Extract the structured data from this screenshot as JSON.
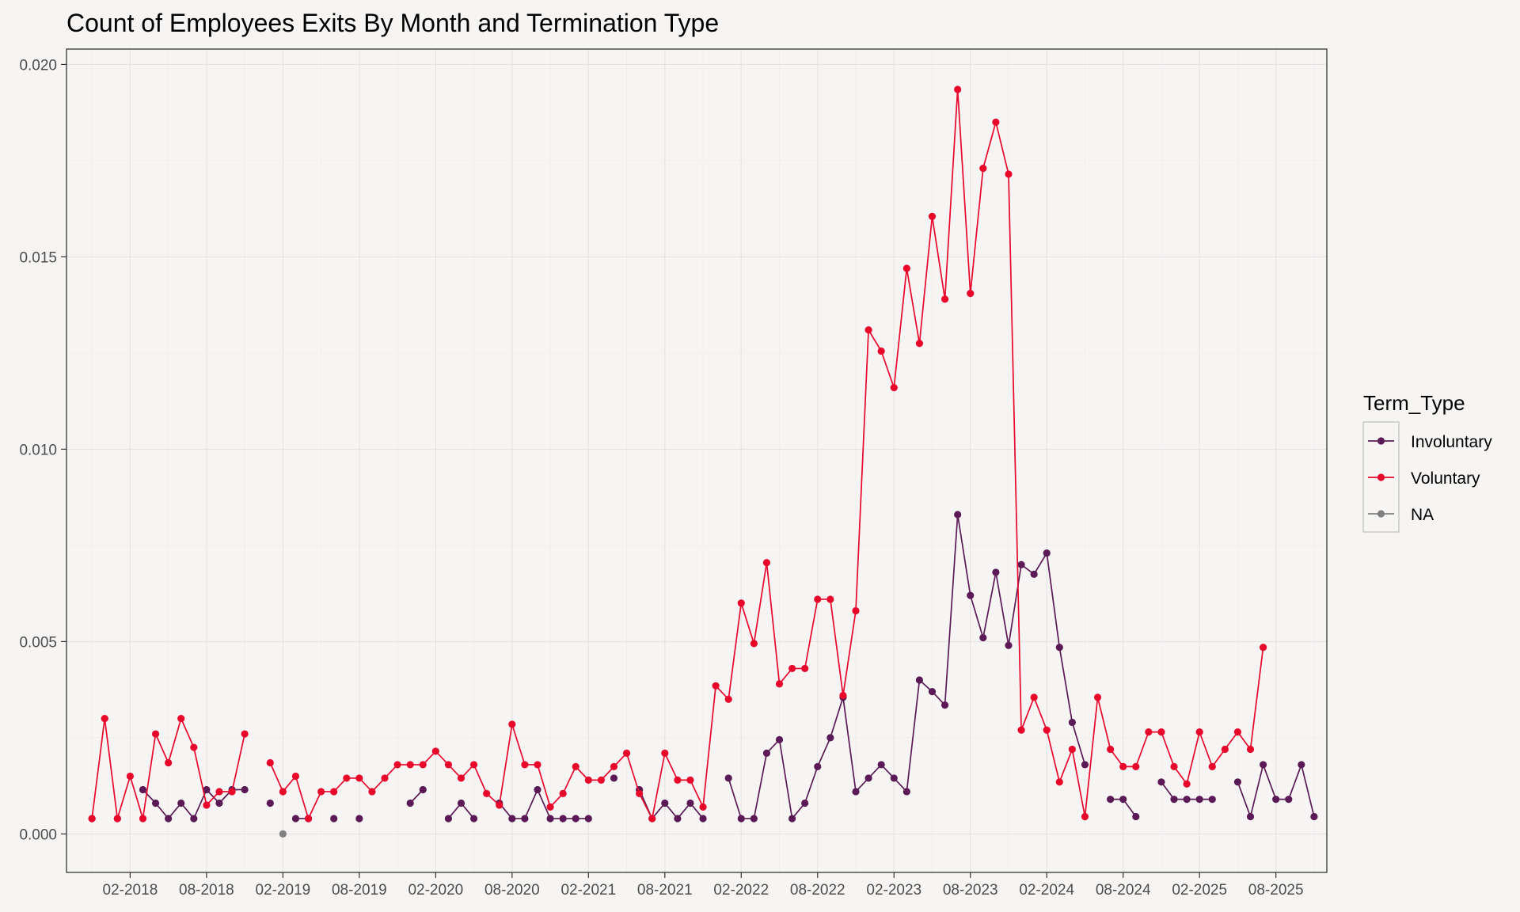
{
  "chart_data": {
    "type": "line",
    "title": "Count of Employees Exits By Month and Termination Type",
    "xlabel": "",
    "ylabel": "",
    "ylim": [
      -0.001,
      0.0204
    ],
    "xlim": [
      "2017-09",
      "2025-12"
    ],
    "yticks": [
      0.0,
      0.005,
      0.01,
      0.015,
      0.02
    ],
    "ytick_labels": [
      "0.000",
      "0.005",
      "0.010",
      "0.015",
      "0.020"
    ],
    "xticks": [
      "2018-02",
      "2018-08",
      "2019-02",
      "2019-08",
      "2020-02",
      "2020-08",
      "2021-02",
      "2021-08",
      "2022-02",
      "2022-08",
      "2023-02",
      "2023-08",
      "2024-02",
      "2024-08",
      "2025-02",
      "2025-08"
    ],
    "xtick_labels": [
      "02-2018",
      "08-2018",
      "02-2019",
      "08-2019",
      "02-2020",
      "08-2020",
      "02-2021",
      "08-2021",
      "02-2022",
      "08-2022",
      "02-2023",
      "08-2023",
      "02-2024",
      "08-2024",
      "02-2025",
      "08-2025"
    ],
    "grid": true,
    "legend": {
      "title": "Term_Type",
      "position": "right"
    },
    "series": [
      {
        "name": "Involuntary",
        "color": "#5b1a55",
        "points": [
          [
            "2017-11",
            0.0004
          ],
          [
            "2018-01",
            0.0004
          ],
          [
            "2018-03",
            0.00115
          ],
          [
            "2018-04",
            0.0008
          ],
          [
            "2018-05",
            0.0004
          ],
          [
            "2018-06",
            0.0008
          ],
          [
            "2018-07",
            0.0004
          ],
          [
            "2018-08",
            0.00115
          ],
          [
            "2018-09",
            0.0008
          ],
          [
            "2018-10",
            0.00115
          ],
          [
            "2018-11",
            0.00115
          ],
          [
            "2019-01",
            0.0008
          ],
          [
            "2019-03",
            0.0004
          ],
          [
            "2019-04",
            0.0004
          ],
          [
            "2019-06",
            0.0004
          ],
          [
            "2019-08",
            0.0004
          ],
          [
            "2019-12",
            0.0008
          ],
          [
            "2020-01",
            0.00115
          ],
          [
            "2020-03",
            0.0004
          ],
          [
            "2020-04",
            0.0008
          ],
          [
            "2020-05",
            0.0004
          ],
          [
            "2020-07",
            0.0008
          ],
          [
            "2020-08",
            0.0004
          ],
          [
            "2020-09",
            0.0004
          ],
          [
            "2020-10",
            0.00115
          ],
          [
            "2020-11",
            0.0004
          ],
          [
            "2020-12",
            0.0004
          ],
          [
            "2021-01",
            0.0004
          ],
          [
            "2021-02",
            0.0004
          ],
          [
            "2021-04",
            0.00145
          ],
          [
            "2021-06",
            0.00115
          ],
          [
            "2021-07",
            0.0004
          ],
          [
            "2021-08",
            0.0008
          ],
          [
            "2021-09",
            0.0004
          ],
          [
            "2021-10",
            0.0008
          ],
          [
            "2021-11",
            0.0004
          ],
          [
            "2022-01",
            0.00145
          ],
          [
            "2022-02",
            0.0004
          ],
          [
            "2022-03",
            0.0004
          ],
          [
            "2022-04",
            0.0021
          ],
          [
            "2022-05",
            0.00245
          ],
          [
            "2022-06",
            0.0004
          ],
          [
            "2022-07",
            0.0008
          ],
          [
            "2022-08",
            0.00175
          ],
          [
            "2022-09",
            0.0025
          ],
          [
            "2022-10",
            0.00355
          ],
          [
            "2022-11",
            0.0011
          ],
          [
            "2022-12",
            0.00145
          ],
          [
            "2023-01",
            0.0018
          ],
          [
            "2023-02",
            0.00145
          ],
          [
            "2023-03",
            0.0011
          ],
          [
            "2023-04",
            0.004
          ],
          [
            "2023-05",
            0.0037
          ],
          [
            "2023-06",
            0.00335
          ],
          [
            "2023-07",
            0.0083
          ],
          [
            "2023-08",
            0.0062
          ],
          [
            "2023-09",
            0.0051
          ],
          [
            "2023-10",
            0.0068
          ],
          [
            "2023-11",
            0.0049
          ],
          [
            "2023-12",
            0.007
          ],
          [
            "2024-01",
            0.00675
          ],
          [
            "2024-02",
            0.0073
          ],
          [
            "2024-03",
            0.00485
          ],
          [
            "2024-04",
            0.0029
          ],
          [
            "2024-05",
            0.0018
          ],
          [
            "2024-07",
            0.0009
          ],
          [
            "2024-08",
            0.0009
          ],
          [
            "2024-09",
            0.00045
          ],
          [
            "2024-11",
            0.00135
          ],
          [
            "2024-12",
            0.0009
          ],
          [
            "2025-01",
            0.0009
          ],
          [
            "2025-02",
            0.0009
          ],
          [
            "2025-03",
            0.0009
          ],
          [
            "2025-05",
            0.00135
          ],
          [
            "2025-06",
            0.00045
          ],
          [
            "2025-07",
            0.0018
          ],
          [
            "2025-08",
            0.0009
          ],
          [
            "2025-09",
            0.0009
          ],
          [
            "2025-10",
            0.0018
          ],
          [
            "2025-11",
            0.00045
          ]
        ]
      },
      {
        "name": "Voluntary",
        "color": "#e8062b",
        "points": [
          [
            "2017-11",
            0.0004
          ],
          [
            "2017-12",
            0.003
          ],
          [
            "2018-01",
            0.0004
          ],
          [
            "2018-02",
            0.0015
          ],
          [
            "2018-03",
            0.0004
          ],
          [
            "2018-04",
            0.0026
          ],
          [
            "2018-05",
            0.00185
          ],
          [
            "2018-06",
            0.003
          ],
          [
            "2018-07",
            0.00225
          ],
          [
            "2018-08",
            0.00075
          ],
          [
            "2018-09",
            0.0011
          ],
          [
            "2018-10",
            0.0011
          ],
          [
            "2018-11",
            0.0026
          ],
          [
            "2019-01",
            0.00185
          ],
          [
            "2019-02",
            0.0011
          ],
          [
            "2019-03",
            0.0015
          ],
          [
            "2019-04",
            0.0004
          ],
          [
            "2019-05",
            0.0011
          ],
          [
            "2019-06",
            0.0011
          ],
          [
            "2019-07",
            0.00145
          ],
          [
            "2019-08",
            0.00145
          ],
          [
            "2019-09",
            0.0011
          ],
          [
            "2019-10",
            0.00145
          ],
          [
            "2019-11",
            0.0018
          ],
          [
            "2019-12",
            0.0018
          ],
          [
            "2020-01",
            0.0018
          ],
          [
            "2020-02",
            0.00215
          ],
          [
            "2020-03",
            0.0018
          ],
          [
            "2020-04",
            0.00145
          ],
          [
            "2020-05",
            0.0018
          ],
          [
            "2020-06",
            0.00105
          ],
          [
            "2020-07",
            0.00075
          ],
          [
            "2020-08",
            0.00285
          ],
          [
            "2020-09",
            0.0018
          ],
          [
            "2020-10",
            0.0018
          ],
          [
            "2020-11",
            0.0007
          ],
          [
            "2020-12",
            0.00105
          ],
          [
            "2021-01",
            0.00175
          ],
          [
            "2021-02",
            0.0014
          ],
          [
            "2021-03",
            0.0014
          ],
          [
            "2021-04",
            0.00175
          ],
          [
            "2021-05",
            0.0021
          ],
          [
            "2021-06",
            0.00105
          ],
          [
            "2021-07",
            0.0004
          ],
          [
            "2021-08",
            0.0021
          ],
          [
            "2021-09",
            0.0014
          ],
          [
            "2021-10",
            0.0014
          ],
          [
            "2021-11",
            0.0007
          ],
          [
            "2021-12",
            0.00385
          ],
          [
            "2022-01",
            0.0035
          ],
          [
            "2022-02",
            0.006
          ],
          [
            "2022-03",
            0.00495
          ],
          [
            "2022-04",
            0.00705
          ],
          [
            "2022-05",
            0.0039
          ],
          [
            "2022-06",
            0.0043
          ],
          [
            "2022-07",
            0.0043
          ],
          [
            "2022-08",
            0.0061
          ],
          [
            "2022-09",
            0.0061
          ],
          [
            "2022-10",
            0.0036
          ],
          [
            "2022-11",
            0.0058
          ],
          [
            "2022-12",
            0.0131
          ],
          [
            "2023-01",
            0.01255
          ],
          [
            "2023-02",
            0.0116
          ],
          [
            "2023-03",
            0.0147
          ],
          [
            "2023-04",
            0.01275
          ],
          [
            "2023-05",
            0.01605
          ],
          [
            "2023-06",
            0.0139
          ],
          [
            "2023-07",
            0.01935
          ],
          [
            "2023-08",
            0.01405
          ],
          [
            "2023-09",
            0.0173
          ],
          [
            "2023-10",
            0.0185
          ],
          [
            "2023-11",
            0.01715
          ],
          [
            "2023-12",
            0.0027
          ],
          [
            "2024-01",
            0.00355
          ],
          [
            "2024-02",
            0.0027
          ],
          [
            "2024-03",
            0.00135
          ],
          [
            "2024-04",
            0.0022
          ],
          [
            "2024-05",
            0.00045
          ],
          [
            "2024-06",
            0.00355
          ],
          [
            "2024-07",
            0.0022
          ],
          [
            "2024-08",
            0.00175
          ],
          [
            "2024-09",
            0.00175
          ],
          [
            "2024-10",
            0.00265
          ],
          [
            "2024-11",
            0.00265
          ],
          [
            "2024-12",
            0.00175
          ],
          [
            "2025-01",
            0.0013
          ],
          [
            "2025-02",
            0.00265
          ],
          [
            "2025-03",
            0.00175
          ],
          [
            "2025-04",
            0.0022
          ],
          [
            "2025-05",
            0.00265
          ],
          [
            "2025-06",
            0.0022
          ],
          [
            "2025-07",
            0.00485
          ]
        ]
      },
      {
        "name": "NA",
        "color": "#808080",
        "points": [
          [
            "2019-02",
            0.0
          ]
        ]
      }
    ]
  }
}
